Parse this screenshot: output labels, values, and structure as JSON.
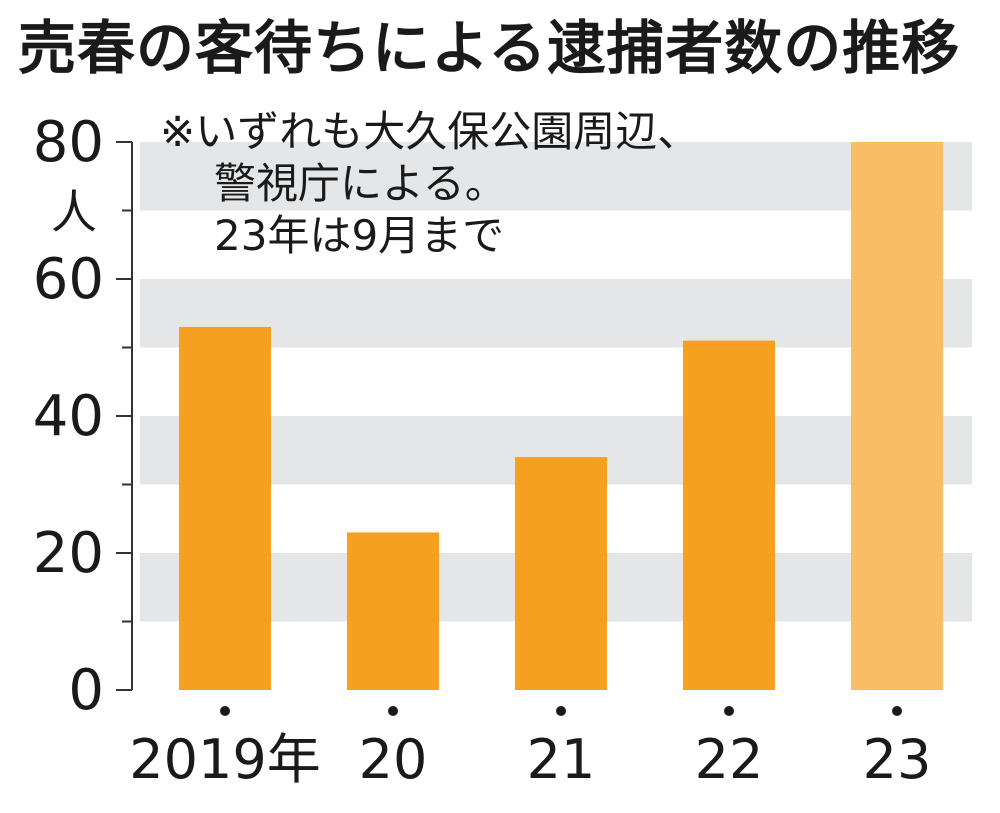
{
  "chart_data": {
    "type": "bar",
    "title": "売春の客待ちによる逮捕者数の推移",
    "ylabel": "人",
    "note_lines": [
      "※いずれも大久保公園周辺、",
      "警視庁による。",
      "23年は9月まで"
    ],
    "categories": [
      "2019年",
      "20",
      "21",
      "22",
      "23"
    ],
    "values": [
      53,
      23,
      34,
      51,
      80
    ],
    "ylim": [
      0,
      80
    ],
    "yticks": [
      0,
      20,
      40,
      60,
      80
    ],
    "bar_colors": [
      "#F5A020",
      "#F5A020",
      "#F5A020",
      "#F5A020",
      "#F9BE63"
    ],
    "band_color": "#E5E6E7",
    "grid": "alternating horizontal bands"
  }
}
